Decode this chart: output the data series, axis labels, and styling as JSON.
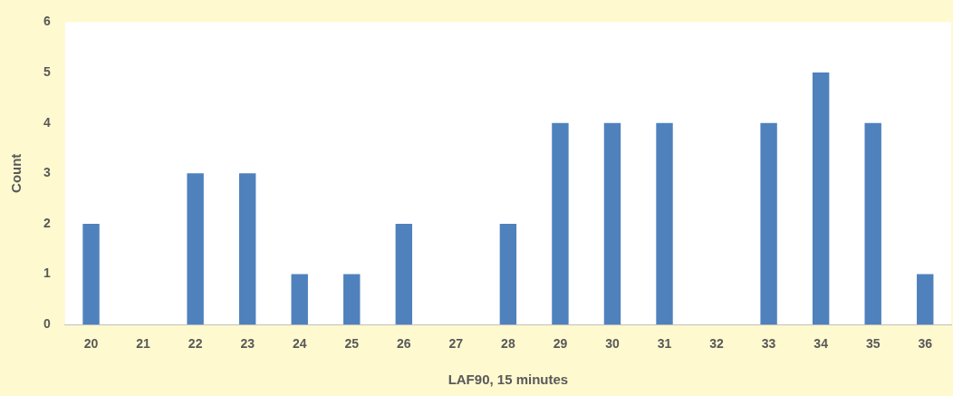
{
  "chart_data": {
    "type": "bar",
    "xlabel": "LAF90, 15 minutes",
    "ylabel": "Count",
    "categories": [
      "20",
      "21",
      "22",
      "23",
      "24",
      "25",
      "26",
      "27",
      "28",
      "29",
      "30",
      "31",
      "32",
      "33",
      "34",
      "35",
      "36"
    ],
    "values": [
      2,
      0,
      3,
      3,
      1,
      1,
      2,
      0,
      2,
      4,
      4,
      4,
      0,
      4,
      5,
      4,
      1
    ],
    "color": "#4f81bd",
    "ylim": [
      0,
      6
    ],
    "yticks": [
      0,
      1,
      2,
      3,
      4,
      5,
      6
    ],
    "grid": false,
    "legend": false
  }
}
